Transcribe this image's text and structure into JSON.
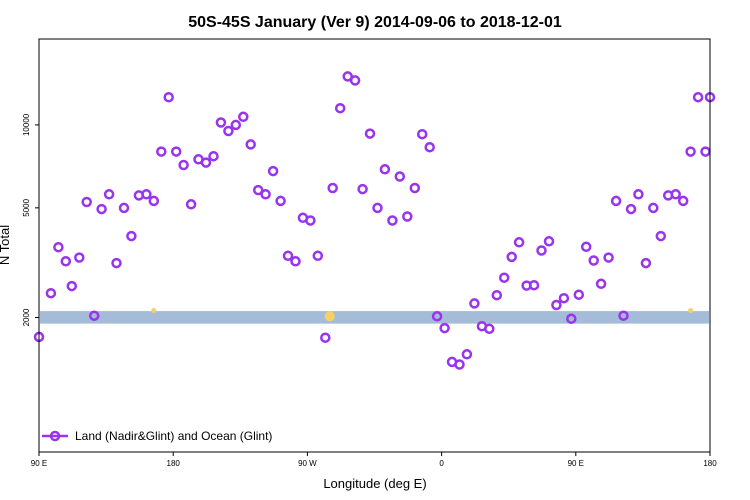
{
  "chart_data": {
    "type": "scatter",
    "title": "50S-45S January (Ver 9)   2014-09-06 to 2018-12-01",
    "xlabel": "Longitude (deg E)",
    "ylabel": "N Total",
    "x_ticks": [
      {
        "value": 90,
        "label": "90 E"
      },
      {
        "value": 180,
        "label": "180"
      },
      {
        "value": 270,
        "label": "90 W"
      },
      {
        "value": 360,
        "label": "0"
      },
      {
        "value": 450,
        "label": "90 E"
      },
      {
        "value": 540,
        "label": "180"
      }
    ],
    "y_ticks": [
      {
        "value": 2000,
        "label": "2000"
      },
      {
        "value": 5000,
        "label": "5000"
      },
      {
        "value": 10000,
        "label": "10000"
      }
    ],
    "xlim": [
      90,
      540
    ],
    "ylim": [
      650,
      20500
    ],
    "y_scale": "log",
    "grid": false,
    "legend_position": "bottom-left",
    "colors": {
      "marker": "#9933ee",
      "band": "#a4bcd8",
      "glint": "#f8d060"
    },
    "band": {
      "y_low": 1900,
      "y_high": 2110
    },
    "glint_marks": [
      {
        "x": 167,
        "y": 2120
      },
      {
        "x": 285,
        "y": 2020
      },
      {
        "x": 527,
        "y": 2120
      }
    ],
    "series": [
      {
        "name": "Land (Nadir&Glint) and Ocean (Glint)",
        "x": [
          90,
          98,
          103,
          108,
          112,
          117,
          122,
          127,
          132,
          137,
          142,
          147,
          152,
          157,
          162,
          167,
          172,
          177,
          182,
          187,
          192,
          197,
          202,
          207,
          212,
          217,
          222,
          227,
          232,
          237,
          242,
          247,
          252,
          257,
          262,
          267,
          272,
          277,
          282,
          287,
          292,
          297,
          302,
          307,
          312,
          317,
          322,
          327,
          332,
          337,
          342,
          347,
          352,
          357,
          362,
          367,
          372,
          377,
          382,
          387,
          392,
          397,
          402,
          407,
          412,
          417,
          422,
          427,
          432,
          437,
          442,
          447,
          452,
          457,
          462,
          467,
          472,
          477,
          482,
          487,
          492,
          497,
          502,
          507,
          512,
          517,
          522,
          527,
          532,
          537,
          540
        ],
        "y": [
          1700,
          2450,
          3600,
          3200,
          2600,
          3300,
          5250,
          2030,
          4950,
          5600,
          3150,
          5000,
          3950,
          5550,
          5600,
          5300,
          8000,
          12600,
          8000,
          7150,
          5150,
          7500,
          7300,
          7700,
          10200,
          9500,
          10000,
          10700,
          8500,
          5800,
          5600,
          6800,
          5300,
          3350,
          3200,
          4600,
          4500,
          3350,
          1690,
          5900,
          11500,
          15000,
          14500,
          5850,
          9300,
          5000,
          6900,
          4500,
          6500,
          4650,
          5900,
          9250,
          8300,
          2020,
          1830,
          1380,
          1350,
          1470,
          2250,
          1860,
          1820,
          2410,
          2790,
          3320,
          3750,
          2610,
          2620,
          3500,
          3780,
          2220,
          2350,
          1980,
          2420,
          3610,
          3220,
          2650,
          3300,
          5300,
          2030,
          4950,
          5600,
          3150,
          5000,
          3950,
          5550,
          5600,
          5300,
          8000,
          12600,
          8000,
          12600
        ]
      }
    ]
  }
}
